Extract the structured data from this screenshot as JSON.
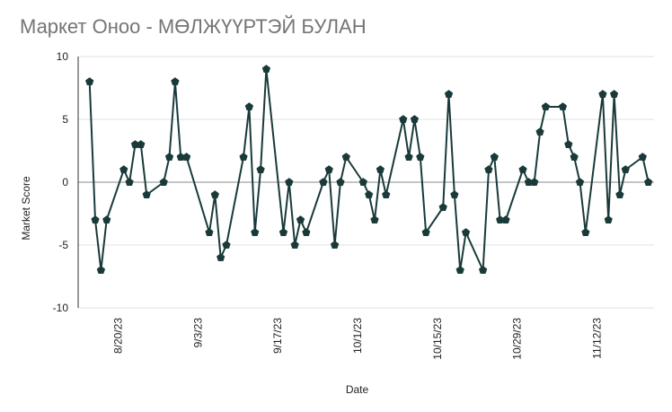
{
  "title": "Маркет Оноо - МӨЛЖҮҮРТЭЙ БУЛАН",
  "colors": {
    "line": "#1a3a3a",
    "grid": "#e0e0e0",
    "zero_line": "#8a8a8a",
    "title": "#757575"
  },
  "chart_data": {
    "type": "line",
    "title": "Маркет Оноо - МӨЛЖҮҮРТЭЙ БУЛАН",
    "xlabel": "Date",
    "ylabel": "Market Score",
    "ylim": [
      -10,
      10
    ],
    "y_ticks": [
      10,
      5,
      0,
      -5,
      -10
    ],
    "x_tick_labels": [
      "8/20/23",
      "9/3/23",
      "9/17/23",
      "10/1/23",
      "10/15/23",
      "10/29/23",
      "11/12/23"
    ],
    "x_tick_dates": [
      "2023-08-20",
      "2023-09-03",
      "2023-09-17",
      "2023-10-01",
      "2023-10-15",
      "2023-10-29",
      "2023-11-12"
    ],
    "grid": true,
    "legend": "none",
    "marker": "pentagon",
    "series": [
      {
        "x": [
          "2023-08-15",
          "2023-08-16",
          "2023-08-17",
          "2023-08-18",
          "2023-08-21",
          "2023-08-22",
          "2023-08-23",
          "2023-08-24",
          "2023-08-25",
          "2023-08-28",
          "2023-08-29",
          "2023-08-30",
          "2023-08-31",
          "2023-09-01",
          "2023-09-05",
          "2023-09-06",
          "2023-09-07",
          "2023-09-08",
          "2023-09-11",
          "2023-09-12",
          "2023-09-13",
          "2023-09-14",
          "2023-09-15",
          "2023-09-18",
          "2023-09-19",
          "2023-09-20",
          "2023-09-21",
          "2023-09-22",
          "2023-09-25",
          "2023-09-26",
          "2023-09-27",
          "2023-09-28",
          "2023-09-29",
          "2023-10-02",
          "2023-10-03",
          "2023-10-04",
          "2023-10-05",
          "2023-10-06",
          "2023-10-09",
          "2023-10-10",
          "2023-10-11",
          "2023-10-12",
          "2023-10-13",
          "2023-10-16",
          "2023-10-17",
          "2023-10-18",
          "2023-10-19",
          "2023-10-20",
          "2023-10-23",
          "2023-10-24",
          "2023-10-25",
          "2023-10-26",
          "2023-10-27",
          "2023-10-30",
          "2023-10-31",
          "2023-11-01",
          "2023-11-02",
          "2023-11-03",
          "2023-11-06",
          "2023-11-07",
          "2023-11-08",
          "2023-11-09",
          "2023-11-10",
          "2023-11-13",
          "2023-11-14",
          "2023-11-15",
          "2023-11-16",
          "2023-11-17",
          "2023-11-20",
          "2023-11-21"
        ],
        "y": [
          8,
          -3,
          -7,
          -3,
          1,
          0,
          3,
          3,
          -1,
          0,
          2,
          8,
          2,
          2,
          -4,
          -1,
          -6,
          -5,
          2,
          6,
          -4,
          1,
          9,
          -4,
          0,
          -5,
          -3,
          -4,
          0,
          1,
          -5,
          0,
          2,
          0,
          -1,
          -3,
          1,
          -1,
          5,
          2,
          5,
          2,
          -4,
          -2,
          7,
          -1,
          -7,
          -4,
          -7,
          1,
          2,
          -3,
          -3,
          1,
          0,
          0,
          4,
          6,
          6,
          3,
          2,
          0,
          -4,
          7,
          -3,
          7,
          -1,
          1,
          2,
          0
        ]
      }
    ]
  }
}
